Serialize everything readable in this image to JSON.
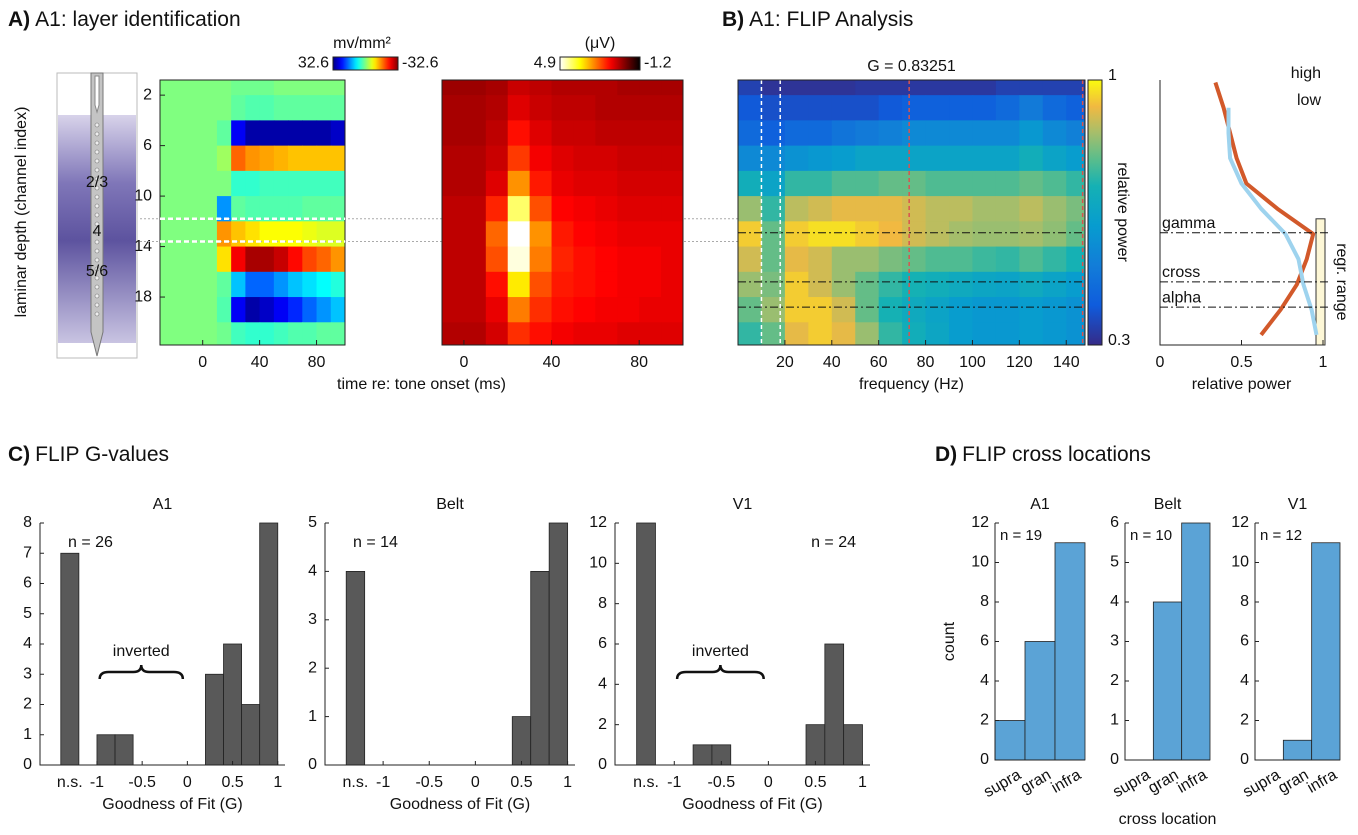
{
  "panels": [
    {
      "label": "A)",
      "title": "A1: layer identification"
    },
    {
      "label": "B)",
      "title": "A1: FLIP Analysis"
    },
    {
      "label": "C)",
      "title": "FLIP G-values"
    },
    {
      "label": "D)",
      "title": "FLIP cross locations"
    }
  ],
  "chart_data": [
    {
      "type": "heatmap",
      "xlabel": "time re: tone onset (ms)",
      "ylabel": "laminar depth (channel index)",
      "colorbar_label": "mv/mm²",
      "colormap": "jet",
      "clim": [
        32.6,
        -32.6
      ],
      "x": [
        -25,
        -15,
        -5,
        5,
        15,
        25,
        35,
        45,
        55,
        65,
        75,
        85,
        95
      ],
      "y": [
        1,
        3,
        5,
        7,
        9,
        11,
        13,
        15,
        17,
        19,
        21
      ],
      "z": [
        [
          0,
          0,
          0,
          0,
          0,
          1,
          1,
          1,
          0,
          0,
          0,
          0,
          0
        ],
        [
          0,
          0,
          0,
          0,
          0,
          2,
          3,
          3,
          2,
          2,
          2,
          2,
          2
        ],
        [
          0,
          0,
          0,
          0,
          2,
          25,
          30,
          30,
          30,
          30,
          30,
          30,
          28
        ],
        [
          0,
          0,
          0,
          0,
          -2,
          -18,
          -15,
          -14,
          -13,
          -12,
          -12,
          -12,
          -12
        ],
        [
          0,
          0,
          0,
          0,
          0,
          5,
          5,
          4,
          4,
          4,
          4,
          4,
          4
        ],
        [
          0,
          0,
          0,
          0,
          15,
          2,
          3,
          3,
          3,
          3,
          2,
          2,
          2
        ],
        [
          0,
          0,
          0,
          0,
          -15,
          -12,
          -10,
          -8,
          -8,
          -8,
          -7,
          -6,
          -6
        ],
        [
          0,
          0,
          0,
          0,
          -10,
          -25,
          -30,
          -30,
          -28,
          -24,
          -20,
          -18,
          -15
        ],
        [
          0,
          0,
          0,
          0,
          2,
          12,
          18,
          18,
          15,
          12,
          10,
          8,
          6
        ],
        [
          0,
          0,
          0,
          0,
          3,
          25,
          30,
          28,
          25,
          22,
          18,
          15,
          12
        ],
        [
          0,
          0,
          0,
          0,
          1,
          4,
          5,
          5,
          4,
          3,
          3,
          2,
          2
        ]
      ],
      "xlim": [
        -30,
        100
      ],
      "ylim": [
        21.8,
        0.8
      ],
      "xticks": [
        0,
        40,
        80
      ],
      "yticks": [
        2,
        6,
        10,
        14,
        18
      ],
      "layers": [
        "2/3",
        "4",
        "5/6"
      ],
      "hlines": [
        11.8,
        13.6
      ]
    },
    {
      "type": "heatmap",
      "colorbar_label": "(μV)",
      "colormap": "hot_r",
      "clim": [
        4.9,
        -1.2
      ],
      "x": [
        -5,
        5,
        15,
        25,
        35,
        45,
        55,
        65,
        75,
        85,
        95
      ],
      "y": [
        1,
        3,
        5,
        7,
        9,
        11,
        13,
        15,
        17,
        19,
        21
      ],
      "z": [
        [
          0.2,
          0.2,
          0.3,
          0.6,
          0.5,
          0.4,
          0.4,
          0.4,
          0.3,
          0.3,
          0.3
        ],
        [
          0.3,
          0.3,
          0.4,
          0.8,
          0.6,
          0.5,
          0.5,
          0.4,
          0.4,
          0.4,
          0.4
        ],
        [
          0.3,
          0.3,
          0.5,
          1.2,
          0.8,
          0.6,
          0.6,
          0.5,
          0.5,
          0.5,
          0.5
        ],
        [
          0.4,
          0.4,
          0.6,
          1.6,
          1.0,
          0.8,
          0.7,
          0.7,
          0.6,
          0.6,
          0.6
        ],
        [
          0.4,
          0.4,
          0.8,
          2.4,
          1.3,
          0.9,
          0.8,
          0.8,
          0.7,
          0.7,
          0.7
        ],
        [
          0.5,
          0.5,
          1.4,
          4.0,
          1.8,
          1.1,
          1.0,
          0.9,
          0.8,
          0.8,
          0.8
        ],
        [
          0.5,
          0.5,
          2.0,
          4.9,
          2.4,
          1.3,
          1.1,
          1.0,
          0.9,
          0.9,
          0.9
        ],
        [
          0.5,
          0.5,
          1.8,
          4.7,
          2.2,
          1.4,
          1.2,
          1.1,
          1.0,
          1.0,
          0.9
        ],
        [
          0.5,
          0.5,
          1.2,
          3.2,
          1.8,
          1.3,
          1.2,
          1.1,
          1.0,
          1.0,
          0.9
        ],
        [
          0.5,
          0.5,
          0.9,
          2.2,
          1.5,
          1.2,
          1.1,
          1.0,
          1.0,
          0.9,
          0.9
        ],
        [
          0.4,
          0.4,
          0.7,
          1.5,
          1.2,
          1.0,
          0.9,
          0.9,
          0.8,
          0.8,
          0.8
        ]
      ],
      "xlim": [
        -10,
        100
      ],
      "ylim": [
        21.8,
        0.8
      ],
      "xticks": [
        0,
        40,
        80
      ]
    },
    {
      "type": "heatmap",
      "title": "G = 0.83251",
      "xlabel": "frequency (Hz)",
      "colorbar_label": "relative power",
      "colormap": "parula",
      "clim": [
        0.3,
        1
      ],
      "x": [
        5,
        15,
        25,
        35,
        45,
        55,
        65,
        75,
        85,
        95,
        105,
        115,
        125,
        135,
        145
      ],
      "y": [
        1,
        3,
        5,
        7,
        9,
        11,
        13,
        15,
        17,
        19,
        21
      ],
      "z": [
        [
          0.35,
          0.32,
          0.32,
          0.32,
          0.32,
          0.33,
          0.33,
          0.33,
          0.33,
          0.33,
          0.33,
          0.35,
          0.35,
          0.35,
          0.35
        ],
        [
          0.4,
          0.38,
          0.38,
          0.38,
          0.38,
          0.38,
          0.4,
          0.42,
          0.42,
          0.42,
          0.42,
          0.45,
          0.5,
          0.45,
          0.42
        ],
        [
          0.45,
          0.42,
          0.45,
          0.45,
          0.48,
          0.5,
          0.52,
          0.55,
          0.55,
          0.55,
          0.55,
          0.55,
          0.6,
          0.55,
          0.52
        ],
        [
          0.55,
          0.55,
          0.58,
          0.6,
          0.62,
          0.65,
          0.65,
          0.65,
          0.65,
          0.65,
          0.65,
          0.65,
          0.7,
          0.65,
          0.62
        ],
        [
          0.7,
          0.65,
          0.75,
          0.75,
          0.78,
          0.78,
          0.8,
          0.8,
          0.78,
          0.78,
          0.78,
          0.78,
          0.8,
          0.78,
          0.75
        ],
        [
          0.85,
          0.75,
          0.88,
          0.9,
          0.92,
          0.92,
          0.92,
          0.9,
          0.88,
          0.88,
          0.86,
          0.86,
          0.88,
          0.85,
          0.82
        ],
        [
          0.95,
          0.8,
          0.95,
          0.97,
          0.97,
          0.95,
          0.93,
          0.9,
          0.88,
          0.86,
          0.85,
          0.85,
          0.86,
          0.84,
          0.8
        ],
        [
          0.9,
          0.8,
          0.92,
          0.9,
          0.85,
          0.85,
          0.82,
          0.8,
          0.78,
          0.78,
          0.76,
          0.75,
          0.78,
          0.75,
          0.72
        ],
        [
          0.85,
          0.82,
          0.95,
          0.9,
          0.85,
          0.8,
          0.75,
          0.72,
          0.7,
          0.68,
          0.66,
          0.65,
          0.68,
          0.65,
          0.62
        ],
        [
          0.8,
          0.85,
          0.95,
          0.95,
          0.9,
          0.8,
          0.72,
          0.68,
          0.65,
          0.62,
          0.6,
          0.6,
          0.62,
          0.6,
          0.58
        ],
        [
          0.75,
          0.8,
          0.92,
          0.95,
          0.92,
          0.85,
          0.75,
          0.7,
          0.66,
          0.62,
          0.6,
          0.6,
          0.62,
          0.6,
          0.58
        ]
      ],
      "xlim": [
        0,
        148
      ],
      "ylim": [
        21.8,
        0.8
      ],
      "xticks": [
        20,
        40,
        60,
        80,
        100,
        120,
        140
      ],
      "vlines": [
        {
          "value": 10,
          "color": "#ffffff"
        },
        {
          "value": 18,
          "color": "#ffffff"
        },
        {
          "value": 73,
          "color": "#d9534f"
        },
        {
          "value": 147,
          "color": "#d9534f"
        }
      ]
    },
    {
      "type": "line",
      "xlabel": "relative power",
      "legend": "top-right",
      "y": [
        1,
        3,
        5,
        7,
        9,
        11,
        13,
        15,
        17,
        19,
        21
      ],
      "series": [
        {
          "name": "high",
          "color": "#d2592a",
          "values": [
            0.34,
            0.39,
            0.43,
            0.47,
            0.53,
            0.72,
            0.94,
            0.9,
            0.84,
            0.74,
            0.62
          ]
        },
        {
          "name": "low",
          "color": "#9ed3ee",
          "values": [
            null,
            0.42,
            0.42,
            0.43,
            0.5,
            0.62,
            0.77,
            0.85,
            0.88,
            0.93,
            0.96
          ]
        }
      ],
      "xlim": [
        0,
        1
      ],
      "ylim": [
        21.8,
        0.8
      ],
      "xticks": [
        0,
        0.5,
        1
      ],
      "hlines": [
        {
          "label": "gamma",
          "value": 12.9
        },
        {
          "label": "cross",
          "value": 16.8
        },
        {
          "label": "alpha",
          "value": 18.8
        }
      ],
      "regression_range": {
        "label": "regr. range",
        "values": [
          11.8,
          21.8
        ]
      }
    },
    {
      "type": "histogram",
      "title": "A1",
      "n_label": "n = 26",
      "n_corner": "top-left",
      "color": "#595959",
      "bins": [
        -1,
        -0.8,
        -0.6,
        -0.4,
        -0.2,
        0,
        0.2,
        0.4,
        0.6,
        0.8,
        1
      ],
      "values": [
        1,
        1,
        0,
        0,
        0,
        0,
        3,
        4,
        2,
        8
      ],
      "ns": {
        "label": "n.s.",
        "value": 7
      },
      "annotation": "inverted",
      "xlim": [
        -1.63,
        1.08
      ],
      "ylim": [
        0,
        8
      ],
      "xticks": [
        -1,
        -0.5,
        0,
        0.5,
        1
      ],
      "yticks": [
        0,
        1,
        2,
        3,
        4,
        5,
        6,
        7,
        8
      ],
      "xlabel": "Goodness of Fit (G)"
    },
    {
      "type": "histogram",
      "title": "Belt",
      "n_label": "n = 14",
      "n_corner": "top-left",
      "color": "#595959",
      "bins": [
        -1,
        -0.8,
        -0.6,
        -0.4,
        -0.2,
        0,
        0.2,
        0.4,
        0.6,
        0.8,
        1
      ],
      "values": [
        0,
        0,
        0,
        0,
        0,
        0,
        0,
        1,
        4,
        5
      ],
      "ns": {
        "label": "n.s.",
        "value": 4
      },
      "xlim": [
        -1.63,
        1.08
      ],
      "ylim": [
        0,
        5
      ],
      "xticks": [
        -1,
        -0.5,
        0,
        0.5,
        1
      ],
      "yticks": [
        0,
        1,
        2,
        3,
        4,
        5
      ],
      "xlabel": "Goodness of Fit (G)"
    },
    {
      "type": "histogram",
      "title": "V1",
      "n_label": "n = 24",
      "n_corner": "top-right",
      "color": "#595959",
      "bins": [
        -1,
        -0.8,
        -0.6,
        -0.4,
        -0.2,
        0,
        0.2,
        0.4,
        0.6,
        0.8,
        1
      ],
      "values": [
        0,
        1,
        1,
        0,
        0,
        0,
        0,
        2,
        6,
        2
      ],
      "ns": {
        "label": "n.s.",
        "value": 12
      },
      "annotation": "inverted",
      "xlim": [
        -1.63,
        1.08
      ],
      "ylim": [
        0,
        12
      ],
      "xticks": [
        -1,
        -0.5,
        0,
        0.5,
        1
      ],
      "yticks": [
        0,
        2,
        4,
        6,
        8,
        10,
        12
      ],
      "xlabel": "Goodness of Fit (G)"
    },
    {
      "type": "bar",
      "title": "A1",
      "n_label": "n = 19",
      "ylabel": "count",
      "color": "#5ba3d6",
      "categories": [
        "supra",
        "gran",
        "infra"
      ],
      "values": [
        2,
        6,
        11
      ],
      "ylim": [
        0,
        12
      ],
      "yticks": [
        0,
        2,
        4,
        6,
        8,
        10,
        12
      ]
    },
    {
      "type": "bar",
      "title": "Belt",
      "n_label": "n = 10",
      "xlabel": "cross location",
      "color": "#5ba3d6",
      "categories": [
        "supra",
        "gran",
        "infra"
      ],
      "values": [
        0,
        4,
        6
      ],
      "ylim": [
        0,
        6
      ],
      "yticks": [
        0,
        1,
        2,
        3,
        4,
        5,
        6
      ]
    },
    {
      "type": "bar",
      "title": "V1",
      "n_label": "n = 12",
      "color": "#5ba3d6",
      "categories": [
        "supra",
        "gran",
        "infra"
      ],
      "values": [
        0,
        1,
        11
      ],
      "ylim": [
        0,
        12
      ],
      "yticks": [
        0,
        2,
        4,
        6,
        8,
        10,
        12
      ]
    }
  ]
}
